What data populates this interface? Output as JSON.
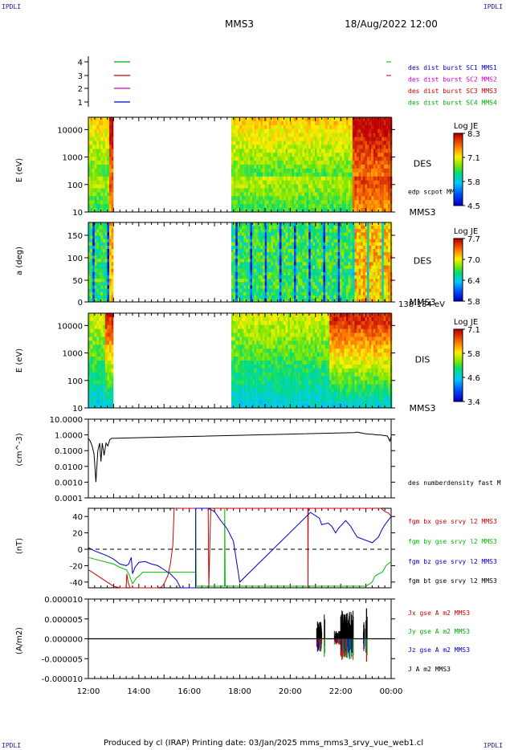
{
  "corners": {
    "top_left": "IPDLI",
    "top_right": "IPDLI",
    "bottom_left": "IPDLI",
    "bottom_right": "IPDLI"
  },
  "header": {
    "title": "MMS3",
    "date": "18/Aug/2022 12:00"
  },
  "footer": "Produced by cl (IRAP)   Printing date: 03/Jan/2025   mms_mms3_srvy_vue_web1.cl",
  "colors": {
    "sc1": "#0000cc",
    "sc2": "#cc00cc",
    "sc3": "#cc0000",
    "sc4": "#00aa00",
    "bx": "#cc0000",
    "by": "#00bb00",
    "bz": "#0000cc",
    "bt": "#000000"
  },
  "chart_data": [
    {
      "type": "line",
      "panel": "burst",
      "y_ticks": [
        "4",
        "3",
        "2",
        "1"
      ],
      "legend": [
        {
          "label": "des dist burst SC1 MMS1",
          "color": "#0000cc",
          "y": 1
        },
        {
          "label": "des dist burst SC2 MMS2",
          "color": "#cc00cc",
          "y": 2
        },
        {
          "label": "des dist burst SC3 MMS3",
          "color": "#cc0000",
          "y": 3
        },
        {
          "label": "des dist burst SC4 MMS4",
          "color": "#00aa00",
          "y": 4
        }
      ]
    },
    {
      "type": "heatmap",
      "panel": "des_energy",
      "ylabel": "E (eV)",
      "y_ticks": [
        "10000",
        "1000",
        "100",
        "10"
      ],
      "ylim": [
        10,
        30000
      ],
      "log": true,
      "right_label": "DES",
      "right_label2": "MMS3",
      "annotation": "edp scpot MMS3",
      "colorbar": {
        "title": "Log JE",
        "ticks": [
          "8.3",
          "7.1",
          "5.8",
          "4.5"
        ],
        "range": [
          4.5,
          8.3
        ]
      },
      "data_intervals": [
        [
          "12:00",
          "13:55"
        ],
        [
          "23:20",
          "00:00"
        ]
      ]
    },
    {
      "type": "heatmap",
      "panel": "des_pitch",
      "ylabel": "a (deg)",
      "y_ticks": [
        "150",
        "100",
        "50",
        "0"
      ],
      "ylim": [
        0,
        180
      ],
      "right_label": "DES",
      "right_label2": "MMS3",
      "annotation": "138-184 eV",
      "colorbar": {
        "title": "Log JE",
        "ticks": [
          "7.7",
          "7.0",
          "6.4",
          "5.8"
        ],
        "range": [
          5.8,
          7.7
        ]
      },
      "data_intervals": [
        [
          "12:00",
          "13:55"
        ],
        [
          "23:20",
          "00:00"
        ]
      ]
    },
    {
      "type": "heatmap",
      "panel": "dis_energy",
      "ylabel": "E (eV)",
      "y_ticks": [
        "10000",
        "1000",
        "100",
        "10"
      ],
      "ylim": [
        10,
        30000
      ],
      "log": true,
      "right_label": "DIS",
      "right_label2": "MMS3",
      "colorbar": {
        "title": "Log JE",
        "ticks": [
          "7.1",
          "5.8",
          "4.6",
          "3.4"
        ],
        "range": [
          3.4,
          7.1
        ]
      },
      "data_intervals": [
        [
          "12:00",
          "13:55"
        ],
        [
          "23:20",
          "00:00"
        ]
      ]
    },
    {
      "type": "line",
      "panel": "density",
      "ylabel": "(cm^-3)",
      "y_ticks": [
        "10.0000",
        "1.0000",
        "0.1000",
        "0.0100",
        "0.0010",
        "0.0001"
      ],
      "ylim": [
        0.0001,
        10
      ],
      "log": true,
      "series": [
        {
          "name": "des numberdensity fast M",
          "color": "#000000",
          "x": [
            0,
            0.15,
            0.3,
            0.45,
            0.6,
            0.75,
            0.9,
            1.0,
            1.1,
            1.25,
            1.4,
            1.55,
            1.7,
            1.85,
            21.1,
            21.3,
            21.5,
            21.7,
            21.9,
            22.1,
            22.3,
            22.5,
            22.7,
            22.9,
            23.1,
            23.3,
            23.5,
            23.7,
            23.9,
            24.0
          ],
          "y": [
            0.6,
            0.4,
            0.2,
            0.06,
            0.001,
            0.1,
            0.3,
            0.02,
            0.3,
            0.05,
            0.3,
            0.2,
            0.5,
            0.6,
            1.4,
            1.5,
            1.4,
            1.3,
            1.2,
            1.15,
            1.1,
            1.1,
            1.05,
            1.0,
            1.0,
            0.95,
            0.9,
            0.85,
            0.4,
            0.8
          ]
        }
      ]
    },
    {
      "type": "line",
      "panel": "magnetic_field",
      "ylabel": "(nT)",
      "y_ticks": [
        "40",
        "20",
        "0",
        "-20",
        "-40"
      ],
      "ylim": [
        -47,
        50
      ],
      "series": [
        {
          "name": "fgm bx gse srvy l2 MMS3",
          "color": "#cc0000",
          "x": [
            0,
            0.5,
            1.0,
            1.5,
            2.0,
            2.5,
            3.0,
            3.05,
            3.15,
            3.3,
            5.5,
            5.8,
            6.0,
            6.3,
            6.5,
            6.7,
            6.8,
            9.5,
            9.55,
            9.7,
            17.4,
            17.41,
            17.43,
            23.2,
            23.5,
            23.8,
            24.0
          ],
          "y": [
            -25,
            -30,
            -35,
            -40,
            -45,
            -50,
            -50,
            -30,
            -40,
            -50,
            -50,
            -46,
            -42,
            -32,
            -18,
            5,
            50,
            50,
            -47,
            50,
            50,
            -47,
            50,
            50,
            46,
            44,
            40
          ]
        },
        {
          "name": "fgm by gse srvy l2 MMS3",
          "color": "#00bb00",
          "x": [
            0,
            0.5,
            1.0,
            1.5,
            2.0,
            2.5,
            3.0,
            3.2,
            3.4,
            3.5,
            3.8,
            4.0,
            4.3,
            8.5,
            8.51,
            8.55,
            10.8,
            10.81,
            10.85,
            22.0,
            22.5,
            22.7,
            23.0,
            23.3,
            23.6,
            24.0
          ],
          "y": [
            -10,
            -12,
            -14,
            -16,
            -18,
            -22,
            -25,
            -30,
            -38,
            -42,
            -35,
            -33,
            -28,
            -28,
            50,
            -45,
            -45,
            50,
            -45,
            -45,
            -40,
            -33,
            -30,
            -28,
            -20,
            -15
          ]
        },
        {
          "name": "fgm bz gse srvy l2 MMS3",
          "color": "#0000cc",
          "x": [
            0,
            0.5,
            1.0,
            1.5,
            2.0,
            2.5,
            3.0,
            3.2,
            3.4,
            3.5,
            3.7,
            4.0,
            4.5,
            5.0,
            5.5,
            6.0,
            6.5,
            7.0,
            7.3,
            8.5,
            8.51,
            9.5,
            10.0,
            10.5,
            11.0,
            11.5,
            12.0,
            17.6,
            18.3,
            18.5,
            19.0,
            19.3,
            19.6,
            19.8,
            20.1,
            20.4,
            20.8,
            21.1,
            21.3,
            22.5,
            23.0,
            23.3,
            23.6,
            24.0
          ],
          "y": [
            2,
            -2,
            -5,
            -8,
            -12,
            -18,
            -20,
            -18,
            -10,
            -30,
            -22,
            -16,
            -15,
            -18,
            -20,
            -25,
            -30,
            -38,
            -48,
            -48,
            50,
            50,
            46,
            35,
            25,
            10,
            -40,
            45,
            38,
            30,
            32,
            28,
            20,
            25,
            30,
            35,
            28,
            20,
            15,
            8,
            15,
            25,
            32,
            40
          ]
        },
        {
          "name": "fgm bt gse srvy l2 MMS3",
          "color": "#000000",
          "x": [],
          "y": []
        }
      ]
    },
    {
      "type": "line",
      "panel": "current_density",
      "ylabel": "(A/m2)",
      "y_ticks": [
        "0.000010",
        "0.000005",
        "0.000000",
        "-0.000005",
        "-0.000010"
      ],
      "ylim": [
        -1e-05,
        1e-05
      ],
      "series": [
        {
          "name": "Jx gse A m2 MMS3",
          "color": "#cc0000",
          "x": [],
          "y": []
        },
        {
          "name": "Jy gse A m2 MMS3",
          "color": "#00aa00",
          "x": [],
          "y": []
        },
        {
          "name": "Jz gse A m2 MMS3",
          "color": "#0000cc",
          "x": [],
          "y": []
        },
        {
          "name": "J A m2 MMS3",
          "color": "#000000",
          "x": [],
          "y": []
        }
      ]
    }
  ],
  "x_axis": {
    "ticks": [
      "12:00",
      "14:00",
      "16:00",
      "18:00",
      "20:00",
      "22:00",
      "00:00"
    ]
  }
}
